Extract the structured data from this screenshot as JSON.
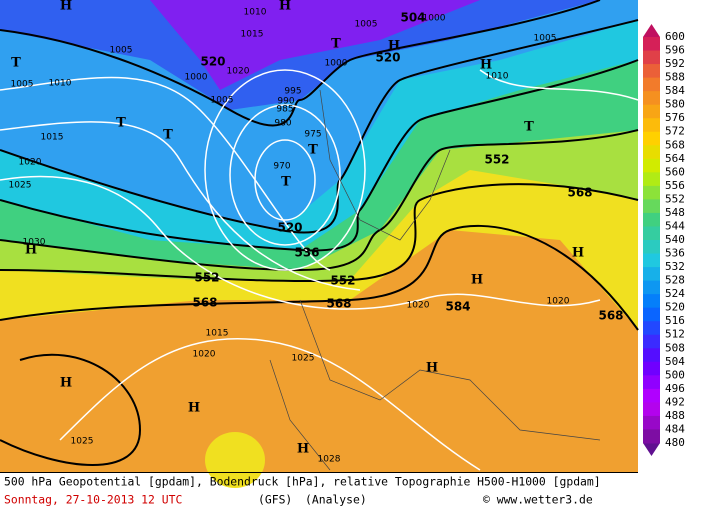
{
  "map": {
    "geopotential_labels": [
      "504",
      "520",
      "520",
      "520",
      "536",
      "552",
      "552",
      "552",
      "568",
      "568",
      "568",
      "568",
      "584"
    ],
    "isobar_labels": [
      "1010",
      "1005",
      "1005",
      "1015",
      "1020",
      "1000",
      "1000",
      "1005",
      "995",
      "990",
      "985",
      "980",
      "975",
      "970",
      "1005",
      "1010",
      "1010",
      "1005",
      "1015",
      "1020",
      "1025",
      "1030",
      "1020",
      "1020",
      "1015",
      "1020",
      "1025",
      "1028",
      "1025",
      "1000"
    ],
    "pressure_centers": [
      "H",
      "H",
      "T",
      "H",
      "T",
      "H",
      "T",
      "T",
      "T",
      "T",
      "T",
      "H",
      "H",
      "H",
      "H",
      "H",
      "H",
      "H"
    ]
  },
  "colorbar": {
    "labels": [
      "600",
      "596",
      "592",
      "588",
      "584",
      "580",
      "576",
      "572",
      "568",
      "564",
      "560",
      "556",
      "552",
      "548",
      "544",
      "540",
      "536",
      "532",
      "528",
      "524",
      "520",
      "516",
      "512",
      "508",
      "504",
      "500",
      "496",
      "492",
      "488",
      "484",
      "480"
    ]
  },
  "footer": {
    "caption": "500 hPa Geopotential [gpdam], Bodendruck [hPa], relative Topographie H500-H1000 [gpdam]",
    "date": "Sonntag, 27-10-2013  12 UTC",
    "model": "(GFS)",
    "run": "(Analyse)",
    "credit": "© www.wetter3.de"
  }
}
